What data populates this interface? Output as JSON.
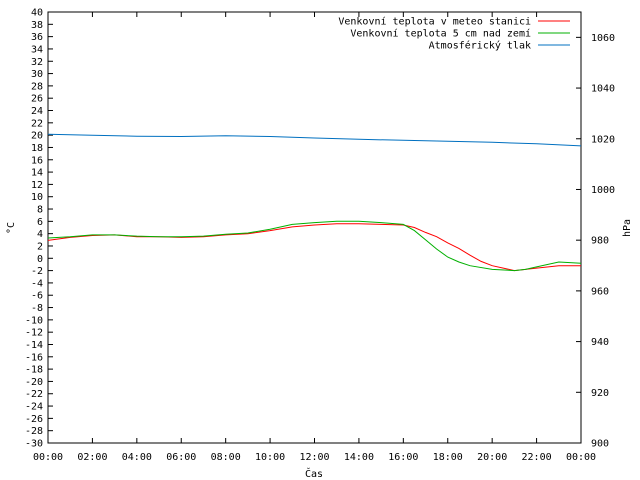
{
  "chart_data": {
    "type": "line",
    "xlabel": "Čas",
    "ylabel": "°C",
    "y2label": "hPa",
    "x_ticks": [
      "00:00",
      "02:00",
      "04:00",
      "06:00",
      "08:00",
      "10:00",
      "12:00",
      "14:00",
      "16:00",
      "18:00",
      "20:00",
      "22:00",
      "00:00"
    ],
    "x_range_hours": [
      0,
      24
    ],
    "ylim": [
      -30,
      40
    ],
    "y_step": 2,
    "y2lim": [
      900,
      1070
    ],
    "y2_ticks": [
      900,
      920,
      940,
      960,
      980,
      1000,
      1020,
      1040,
      1060
    ],
    "legend_position": "top-right",
    "series": [
      {
        "name": "Venkovní teplota v meteo stanici",
        "color": "#ff0000",
        "axis": "left",
        "points": [
          [
            0,
            2.9
          ],
          [
            1,
            3.4
          ],
          [
            2,
            3.7
          ],
          [
            3,
            3.8
          ],
          [
            4,
            3.5
          ],
          [
            5,
            3.5
          ],
          [
            6,
            3.4
          ],
          [
            7,
            3.5
          ],
          [
            8,
            3.8
          ],
          [
            9,
            4.0
          ],
          [
            10,
            4.5
          ],
          [
            11,
            5.1
          ],
          [
            12,
            5.4
          ],
          [
            13,
            5.6
          ],
          [
            14,
            5.6
          ],
          [
            15,
            5.5
          ],
          [
            16,
            5.4
          ],
          [
            16.5,
            5.0
          ],
          [
            17,
            4.2
          ],
          [
            17.5,
            3.5
          ],
          [
            18,
            2.5
          ],
          [
            18.5,
            1.6
          ],
          [
            19,
            0.5
          ],
          [
            19.5,
            -0.5
          ],
          [
            20,
            -1.2
          ],
          [
            20.5,
            -1.6
          ],
          [
            21,
            -2.0
          ],
          [
            21.5,
            -1.8
          ],
          [
            22,
            -1.6
          ],
          [
            23,
            -1.2
          ],
          [
            24,
            -1.2
          ]
        ]
      },
      {
        "name": "Venkovní teplota 5 cm nad zemí",
        "color": "#00b000",
        "axis": "left",
        "points": [
          [
            0,
            3.3
          ],
          [
            1,
            3.5
          ],
          [
            2,
            3.8
          ],
          [
            3,
            3.8
          ],
          [
            4,
            3.6
          ],
          [
            5,
            3.5
          ],
          [
            6,
            3.5
          ],
          [
            7,
            3.6
          ],
          [
            8,
            3.9
          ],
          [
            9,
            4.1
          ],
          [
            10,
            4.7
          ],
          [
            11,
            5.5
          ],
          [
            12,
            5.8
          ],
          [
            13,
            6.0
          ],
          [
            14,
            6.0
          ],
          [
            15,
            5.8
          ],
          [
            16,
            5.5
          ],
          [
            16.5,
            4.5
          ],
          [
            17,
            3.0
          ],
          [
            17.5,
            1.5
          ],
          [
            18,
            0.2
          ],
          [
            18.5,
            -0.6
          ],
          [
            19,
            -1.2
          ],
          [
            20,
            -1.8
          ],
          [
            21,
            -2.0
          ],
          [
            21.5,
            -1.8
          ],
          [
            22,
            -1.4
          ],
          [
            23,
            -0.6
          ],
          [
            24,
            -0.8
          ]
        ]
      },
      {
        "name": "Atmosférický tlak",
        "color": "#0070c0",
        "axis": "right",
        "points": [
          [
            0,
            1021.8
          ],
          [
            2,
            1021.4
          ],
          [
            4,
            1021.0
          ],
          [
            6,
            1020.9
          ],
          [
            8,
            1021.2
          ],
          [
            10,
            1020.9
          ],
          [
            12,
            1020.3
          ],
          [
            14,
            1019.8
          ],
          [
            16,
            1019.4
          ],
          [
            18,
            1019.0
          ],
          [
            20,
            1018.6
          ],
          [
            22,
            1018.0
          ],
          [
            24,
            1017.2
          ]
        ]
      }
    ]
  }
}
